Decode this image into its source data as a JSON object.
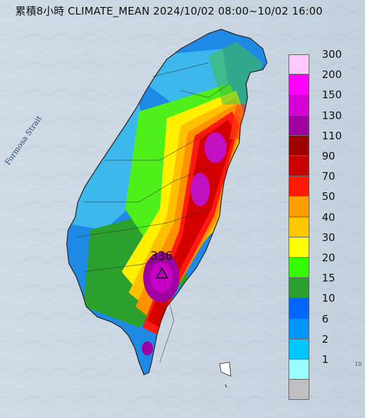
{
  "title": "累積8小時 CLIMATE_MEAN 2024/10/02 08:00~10/02 16:00",
  "labels": {
    "strait": "Formosa Strait",
    "edge": "10"
  },
  "peak": {
    "value": "336",
    "marker_icon": "triangle-icon"
  },
  "legend": {
    "unit_levels": [
      {
        "label": "300",
        "color": "#ffc8ff"
      },
      {
        "label": "200",
        "color": "#ff00ff"
      },
      {
        "label": "150",
        "color": "#d600d6"
      },
      {
        "label": "130",
        "color": "#a000a0"
      },
      {
        "label": "110",
        "color": "#9e0000"
      },
      {
        "label": "90",
        "color": "#c80000"
      },
      {
        "label": "70",
        "color": "#ff1a00"
      },
      {
        "label": "50",
        "color": "#ff9c00"
      },
      {
        "label": "40",
        "color": "#ffc800"
      },
      {
        "label": "30",
        "color": "#ffff00"
      },
      {
        "label": "20",
        "color": "#33ff00"
      },
      {
        "label": "15",
        "color": "#2ca02c"
      },
      {
        "label": "10",
        "color": "#0066ff"
      },
      {
        "label": "6",
        "color": "#0096ff"
      },
      {
        "label": "2",
        "color": "#00c8ff"
      },
      {
        "label": "1",
        "color": "#99ffff"
      },
      {
        "label": "",
        "color": "#c0c0c0"
      }
    ]
  }
}
